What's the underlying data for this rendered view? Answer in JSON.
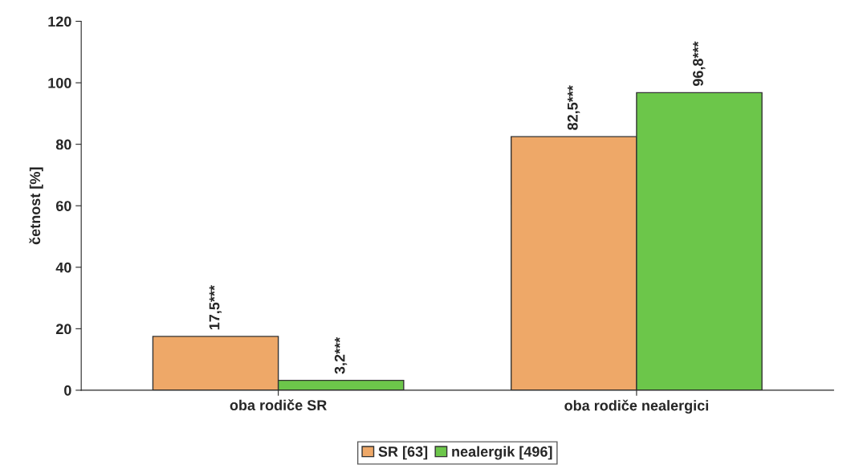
{
  "chart_data": {
    "type": "bar",
    "ylabel": "četnost [%]",
    "categories": [
      "oba rodiče SR",
      "oba rodiče nealergici"
    ],
    "series": [
      {
        "name": "SR [63]",
        "color": "#eea868",
        "values": [
          17.5,
          82.5
        ],
        "value_labels": [
          "17,5***",
          "82,5***"
        ]
      },
      {
        "name": "nealergik [496]",
        "color": "#6cc64a",
        "values": [
          3.2,
          96.8
        ],
        "value_labels": [
          "3,2***",
          "96,8***"
        ]
      }
    ],
    "ylim": [
      0,
      120
    ],
    "yticks": [
      0,
      20,
      40,
      60,
      80,
      100,
      120
    ],
    "grid": false,
    "legend": "bottom"
  }
}
